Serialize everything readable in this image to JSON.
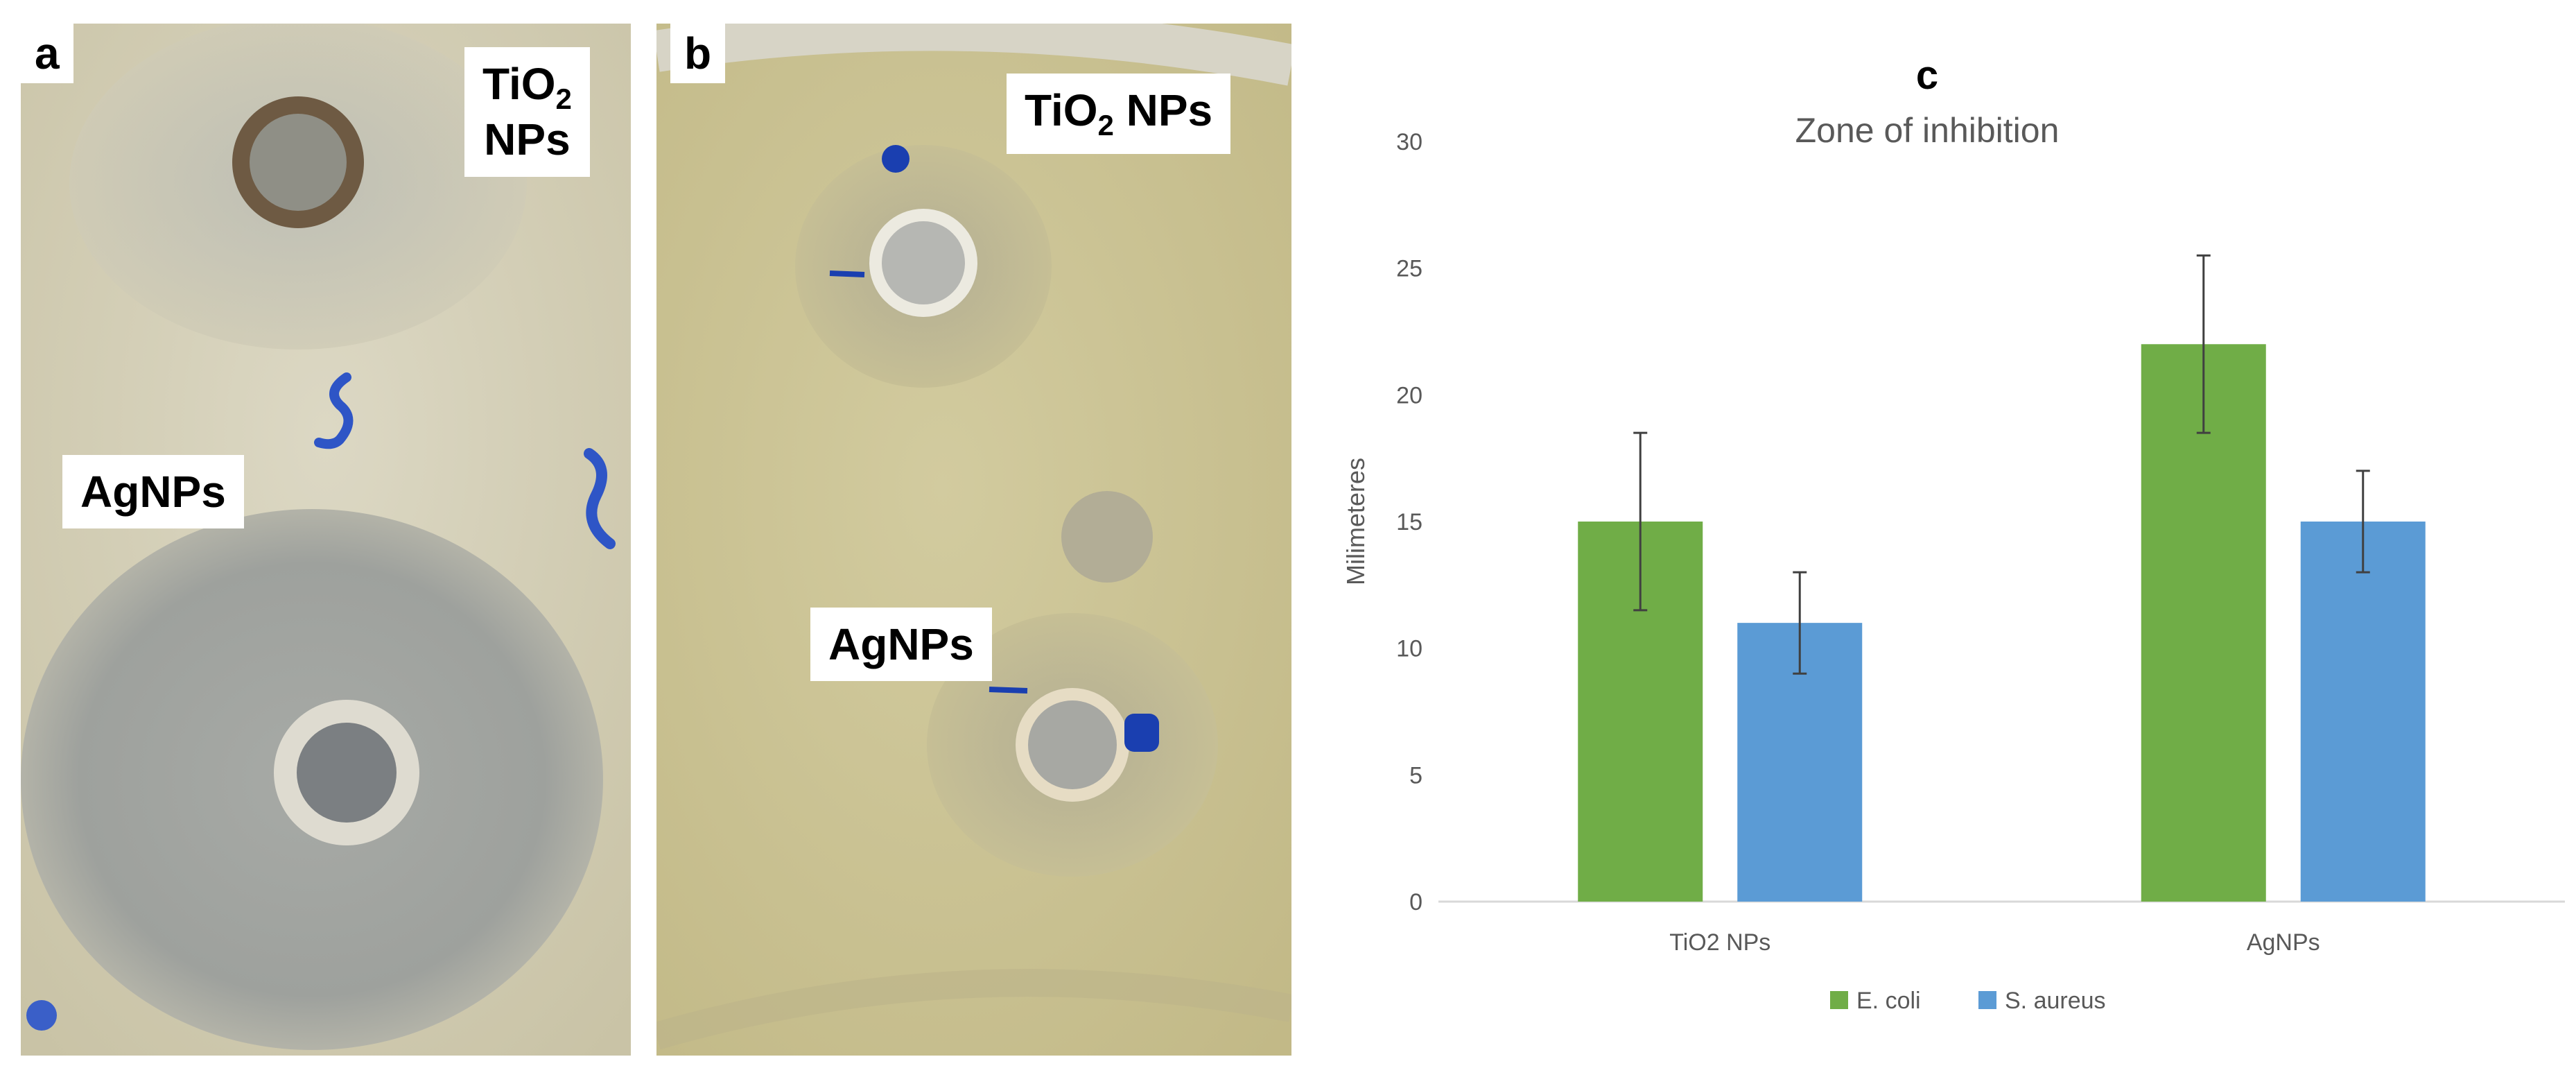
{
  "panels": {
    "a": {
      "letter": "a",
      "label_top_1": "TiO",
      "label_top_sub": "2",
      "label_top_2": "NPs",
      "label_bottom": "AgNPs"
    },
    "b": {
      "letter": "b",
      "label_top_1": "TiO",
      "label_top_sub": "2",
      "label_top_2": " NPs",
      "label_bottom": "AgNPs"
    }
  },
  "colors": {
    "ecoli": "#70AD47",
    "saureus": "#5B9BD5",
    "agar_a": "#d4cfb6",
    "agar_b": "#cdc596",
    "zone": "#9ba09c",
    "marker": "#1a3fb0"
  },
  "chart_data": {
    "type": "bar",
    "panel_letter": "c",
    "title": "Zone of inhibition",
    "xlabel": "",
    "ylabel": "Milimeteres",
    "ylim": [
      0,
      30
    ],
    "yticks": [
      0,
      5,
      10,
      15,
      20,
      25,
      30
    ],
    "categories": [
      "TiO2 NPs",
      "AgNPs"
    ],
    "series": [
      {
        "name": "E. coli",
        "values": [
          15,
          22
        ],
        "errors": [
          3.5,
          3.5
        ]
      },
      {
        "name": "S. aureus",
        "values": [
          11,
          15
        ],
        "errors": [
          2,
          2
        ]
      }
    ],
    "grid": false,
    "legend": "bottom"
  }
}
